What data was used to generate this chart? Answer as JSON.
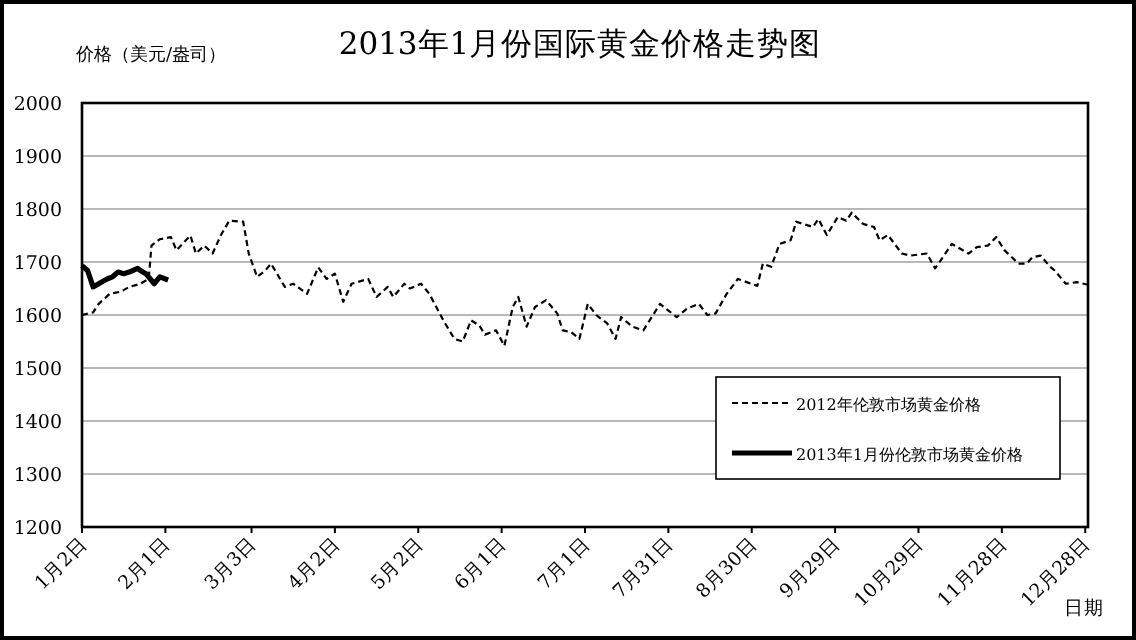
{
  "chart_data": {
    "type": "line",
    "title": "2013年1月份国际黄金价格走势图",
    "ylabel": "价格（美元/盎司）",
    "xlabel": "日期",
    "xlim": [
      "--01-02",
      "--12-29"
    ],
    "xticks": [
      {
        "value": "--01-02",
        "label": "1月2日"
      },
      {
        "value": "--02-01",
        "label": "2月1日"
      },
      {
        "value": "--03-03",
        "label": "3月3日"
      },
      {
        "value": "--04-02",
        "label": "4月2日"
      },
      {
        "value": "--05-02",
        "label": "5月2日"
      },
      {
        "value": "--06-01",
        "label": "6月1日"
      },
      {
        "value": "--07-01",
        "label": "7月1日"
      },
      {
        "value": "--07-31",
        "label": "7月31日"
      },
      {
        "value": "--08-30",
        "label": "8月30日"
      },
      {
        "value": "--09-29",
        "label": "9月29日"
      },
      {
        "value": "--10-29",
        "label": "10月29日"
      },
      {
        "value": "--11-28",
        "label": "11月28日"
      },
      {
        "value": "--12-28",
        "label": "12月28日"
      }
    ],
    "ylim": [
      1200,
      2000
    ],
    "yticks": [
      1200,
      1300,
      1400,
      1500,
      1600,
      1700,
      1800,
      1900,
      2000
    ],
    "grid": "y",
    "legend": "bottom right",
    "marker": "none",
    "series": [
      {
        "name": "2012年伦敦市场黄金价格",
        "color": "#000000",
        "line_style": "dashed",
        "x": [
          "--01-02",
          "--01-06",
          "--01-08",
          "--01-12",
          "--01-16",
          "--01-19",
          "--01-23",
          "--01-26",
          "--01-27",
          "--01-30",
          "--02-03",
          "--02-05",
          "--02-10",
          "--02-12",
          "--02-15",
          "--02-18",
          "--02-21",
          "--02-24",
          "--02-29",
          "--03-02",
          "--03-05",
          "--03-08",
          "--03-10",
          "--03-15",
          "--03-18",
          "--03-23",
          "--03-27",
          "--03-30",
          "--04-02",
          "--04-05",
          "--04-08",
          "--04-14",
          "--04-17",
          "--04-21",
          "--04-23",
          "--04-27",
          "--04-29",
          "--05-03",
          "--05-06",
          "--05-11",
          "--05-15",
          "--05-18",
          "--05-21",
          "--05-24",
          "--05-26",
          "--05-30",
          "--06-02",
          "--06-05",
          "--06-07",
          "--06-10",
          "--06-13",
          "--06-17",
          "--06-21",
          "--06-23",
          "--06-26",
          "--06-29",
          "--07-02",
          "--07-05",
          "--07-09",
          "--07-12",
          "--07-14",
          "--07-18",
          "--07-22",
          "--07-28",
          "--08-03",
          "--08-07",
          "--08-11",
          "--08-14",
          "--08-17",
          "--08-21",
          "--08-25",
          "--09-01",
          "--09-03",
          "--09-06",
          "--09-09",
          "--09-13",
          "--09-15",
          "--09-21",
          "--09-23",
          "--09-26",
          "--09-30",
          "--10-03",
          "--10-05",
          "--10-09",
          "--10-13",
          "--10-15",
          "--10-18",
          "--10-23",
          "--10-26",
          "--11-01",
          "--11-04",
          "--11-06",
          "--11-10",
          "--11-16",
          "--11-19",
          "--11-23",
          "--11-26",
          "--11-29",
          "--12-04",
          "--12-07",
          "--12-09",
          "--12-12",
          "--12-15",
          "--12-17",
          "--12-21",
          "--12-25",
          "--12-29"
        ],
        "values": [
          1600,
          1605,
          1621,
          1640,
          1644,
          1653,
          1659,
          1668,
          1731,
          1743,
          1747,
          1722,
          1750,
          1716,
          1731,
          1716,
          1751,
          1778,
          1776,
          1716,
          1672,
          1684,
          1697,
          1653,
          1659,
          1640,
          1690,
          1668,
          1678,
          1625,
          1659,
          1668,
          1634,
          1653,
          1634,
          1659,
          1650,
          1659,
          1640,
          1590,
          1555,
          1550,
          1590,
          1580,
          1563,
          1571,
          1542,
          1615,
          1634,
          1578,
          1615,
          1628,
          1603,
          1571,
          1568,
          1555,
          1621,
          1600,
          1584,
          1555,
          1596,
          1578,
          1571,
          1621,
          1596,
          1613,
          1621,
          1600,
          1603,
          1640,
          1668,
          1655,
          1697,
          1691,
          1734,
          1741,
          1776,
          1766,
          1781,
          1751,
          1785,
          1778,
          1793,
          1772,
          1766,
          1741,
          1751,
          1716,
          1712,
          1716,
          1688,
          1703,
          1734,
          1716,
          1728,
          1731,
          1747,
          1722,
          1697,
          1697,
          1709,
          1712,
          1693,
          1684,
          1659,
          1662,
          1657
        ]
      },
      {
        "name": "2013年1月份伦敦市场黄金价格",
        "color": "#000000",
        "line_style": "solid",
        "x": [
          "--01-02",
          "--01-04",
          "--01-06",
          "--01-08",
          "--01-11",
          "--01-13",
          "--01-15",
          "--01-17",
          "--01-19",
          "--01-22",
          "--01-23",
          "--01-25",
          "--01-28",
          "--01-30",
          "--02-02"
        ],
        "values": [
          1693,
          1684,
          1653,
          1659,
          1668,
          1672,
          1681,
          1678,
          1681,
          1688,
          1684,
          1678,
          1659,
          1672,
          1666
        ]
      }
    ]
  }
}
